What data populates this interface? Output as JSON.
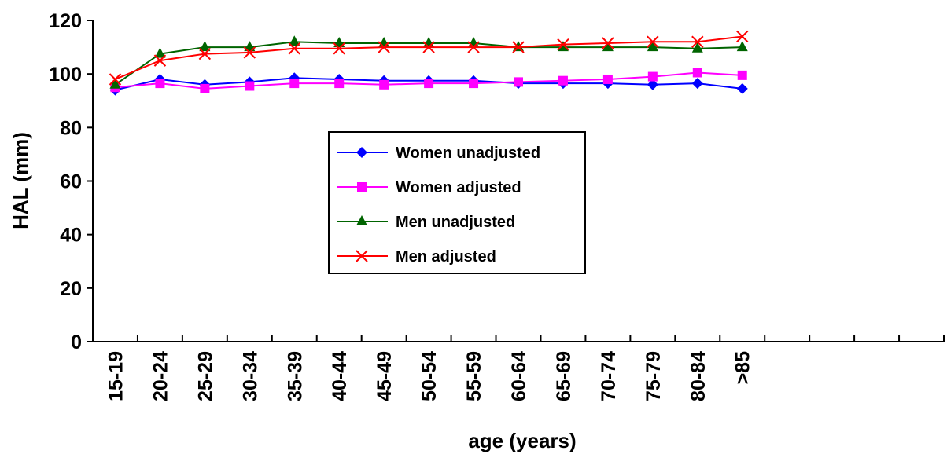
{
  "chart_data": {
    "type": "line",
    "title": "",
    "xlabel": "age (years)",
    "ylabel": "HAL (mm)",
    "ylim": [
      0,
      120
    ],
    "yticks": [
      0,
      20,
      40,
      60,
      80,
      100,
      120
    ],
    "categories": [
      "15-19",
      "20-24",
      "25-29",
      "30-34",
      "35-39",
      "40-44",
      "45-49",
      "50-54",
      "55-59",
      "60-64",
      "65-69",
      "70-74",
      "75-79",
      "80-84",
      ">85"
    ],
    "x_slots": 19,
    "grid": false,
    "legend_position": "center",
    "series": [
      {
        "name": "Women unadjusted",
        "color": "#0000ff",
        "marker": "diamond",
        "values": [
          94,
          98,
          96,
          97,
          98.5,
          98,
          97.5,
          97.5,
          97.5,
          96.5,
          96.5,
          96.5,
          96,
          96.5,
          94.5
        ]
      },
      {
        "name": "Women adjusted",
        "color": "#ff00ff",
        "marker": "square",
        "values": [
          95,
          96.5,
          94.5,
          95.5,
          96.5,
          96.5,
          96,
          96.5,
          96.5,
          97,
          97.5,
          98,
          99,
          100.5,
          99.5
        ]
      },
      {
        "name": "Men unadjusted",
        "color": "#006400",
        "marker": "triangle",
        "values": [
          96,
          107.5,
          110,
          110,
          112,
          111.5,
          111.5,
          111.5,
          111.5,
          110,
          110,
          110,
          110,
          109.5,
          110
        ]
      },
      {
        "name": "Men adjusted",
        "color": "#ff0000",
        "marker": "x",
        "values": [
          98,
          105,
          107.5,
          108,
          109.5,
          109.5,
          110,
          110,
          110,
          110,
          111,
          111.5,
          112,
          112,
          114
        ]
      }
    ]
  }
}
